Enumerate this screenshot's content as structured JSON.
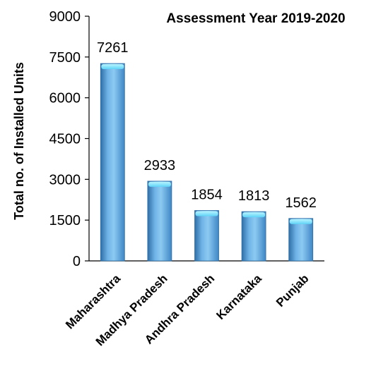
{
  "chart_data": {
    "type": "bar",
    "title": "Assessment Year 2019-2020",
    "xlabel": "",
    "ylabel": "Total no. of Installed Units",
    "categories": [
      "Maharashtra",
      "Madhya Pradesh",
      "Andhra Pradesh",
      "Karnataka",
      "Punjab"
    ],
    "values": [
      7261,
      2933,
      1854,
      1813,
      1562
    ],
    "ylim": [
      0,
      9000
    ],
    "yticks": [
      "0",
      "1500",
      "3000",
      "4500",
      "6000",
      "7500",
      "9000"
    ],
    "grid": false,
    "legend": "none",
    "colors": {
      "bar": "#5b9bd5",
      "bar_dark": "#2e6ea6",
      "bar_light": "#9dd6f5",
      "cap": "#7fe9ff"
    }
  }
}
